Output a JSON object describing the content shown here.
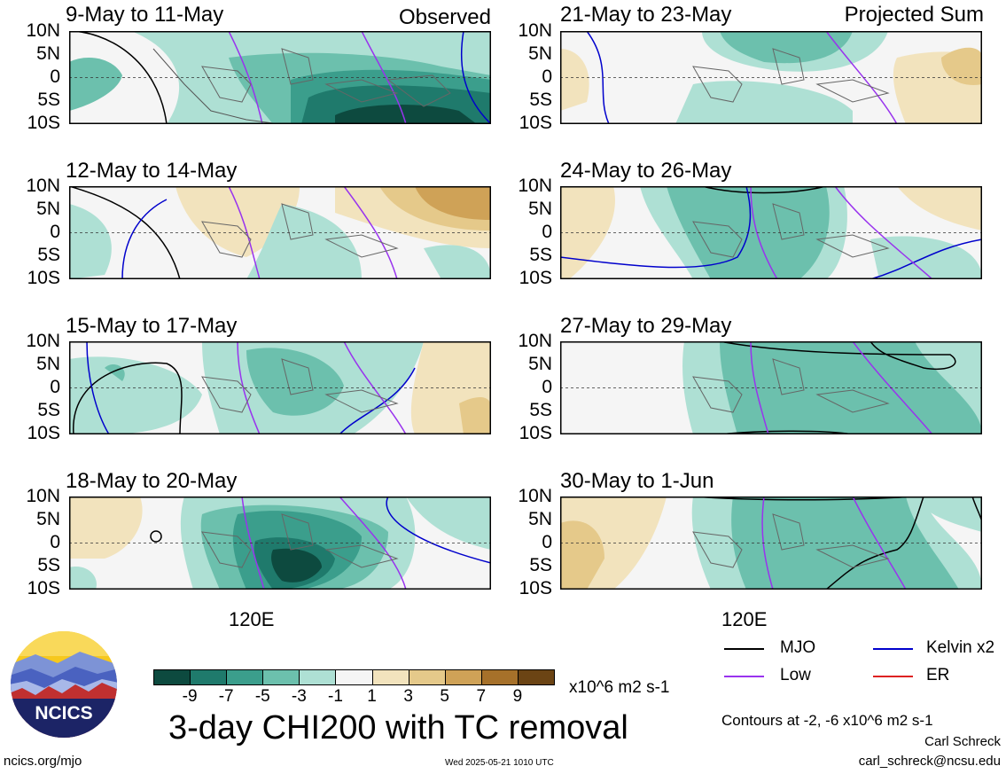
{
  "panels": [
    {
      "title": "9-May to 11-May",
      "label": "Observed"
    },
    {
      "title": "21-May to 23-May",
      "label": "Projected Sum"
    },
    {
      "title": "12-May to 14-May",
      "label": ""
    },
    {
      "title": "24-May to 26-May",
      "label": ""
    },
    {
      "title": "15-May to 17-May",
      "label": ""
    },
    {
      "title": "27-May to 29-May",
      "label": ""
    },
    {
      "title": "18-May to 20-May",
      "label": ""
    },
    {
      "title": "30-May to 1-Jun",
      "label": ""
    }
  ],
  "lat_labels": [
    "10N",
    "5N",
    "0",
    "5S",
    "10S"
  ],
  "lon_label": "120E",
  "colorbar": {
    "ticks": [
      "-9",
      "-7",
      "-5",
      "-3",
      "-1",
      "1",
      "3",
      "5",
      "7",
      "9"
    ],
    "colors": [
      "#0d4a3f",
      "#1f7a6c",
      "#3b9e8c",
      "#6cc0ad",
      "#aee0d4",
      "#f5f5f5",
      "#f2e3bd",
      "#e5c98a",
      "#cfa257",
      "#a6712a",
      "#6b4414"
    ],
    "units": "x10^6 m2 s-1"
  },
  "main_title": "3-day CHI200 with TC removal",
  "legend": [
    {
      "name": "MJO",
      "color": "#000000"
    },
    {
      "name": "Kelvin x2",
      "color": "#0000cc"
    },
    {
      "name": "Low",
      "color": "#9933ee"
    },
    {
      "name": "ER",
      "color": "#dd2222"
    }
  ],
  "contour_note": "Contours at -2, -6 x10^6 m2 s-1",
  "author": "Carl Schreck",
  "email": "carl_schreck@ncsu.edu",
  "site": "ncics.org/mjo",
  "timestamp": "Wed 2025-05-21 1010 UTC",
  "logo_text": "NCICS"
}
